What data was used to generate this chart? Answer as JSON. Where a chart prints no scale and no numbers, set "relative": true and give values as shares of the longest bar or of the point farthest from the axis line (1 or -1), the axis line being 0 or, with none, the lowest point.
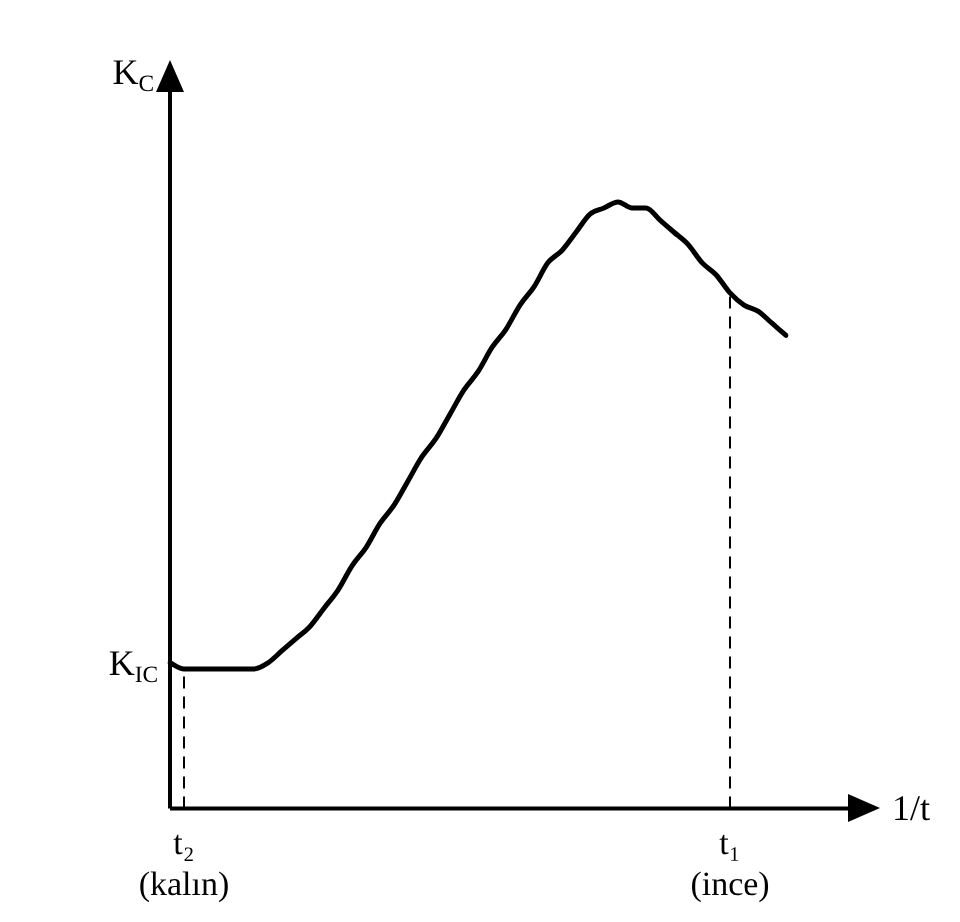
{
  "chart_data": {
    "type": "line",
    "relative": true,
    "xlabel": "1/t",
    "ylabel": "K$_{C}$",
    "categories": [
      null,
      "t₂\n(kalın)",
      null,
      null,
      null,
      null,
      null,
      null,
      null,
      null,
      null,
      null,
      null,
      null,
      null,
      null,
      null,
      null,
      null,
      null,
      null,
      null,
      null,
      null,
      null,
      null,
      null,
      null,
      null,
      null,
      null,
      null,
      null,
      null,
      null,
      null,
      null,
      null,
      null,
      null,
      "t₁\n(ince)",
      null,
      null,
      null,
      null
    ],
    "series": [
      {
        "color": "#000000",
        "values": [
          0.24,
          0.23,
          0.23,
          0.23,
          0.23,
          0.23,
          0.23,
          0.24,
          0.26,
          0.28,
          0.3,
          0.33,
          0.36,
          0.4,
          0.43,
          0.47,
          0.5,
          0.54,
          0.58,
          0.61,
          0.65,
          0.69,
          0.72,
          0.76,
          0.79,
          0.83,
          0.86,
          0.9,
          0.92,
          0.95,
          0.98,
          0.99,
          1,
          0.99,
          0.99,
          0.97,
          0.95,
          0.93,
          0.9,
          0.88,
          0.85,
          0.83,
          0.82,
          0.8,
          0.78
        ]
      }
    ],
    "ref_lines": [
      {
        "axis": "x",
        "value": "t₂\n(kalın)",
        "line_style": "dashed"
      },
      {
        "axis": "x",
        "value": "t₁\n(ince)",
        "line_style": "dashed"
      }
    ],
    "annotations": [
      "K$_{IC}$"
    ],
    "marker": "none",
    "line_style": "solid",
    "grid": false,
    "legend": false
  }
}
